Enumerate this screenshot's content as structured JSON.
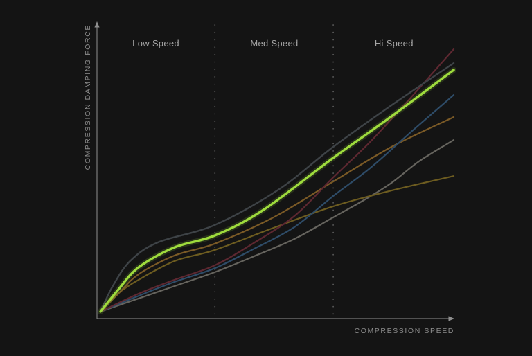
{
  "page": {
    "background": "#141414"
  },
  "chart_data": {
    "type": "line",
    "title": "",
    "xlabel": "COMPRESSION SPEED",
    "ylabel": "COMPRESSION DAMPING FORCE",
    "x_range": [
      0,
      1
    ],
    "y_range": [
      0,
      1
    ],
    "grid": false,
    "legend": "none",
    "zones": [
      {
        "label": "Low Speed",
        "center_u": 0.157
      },
      {
        "label": "Med Speed",
        "center_u": 0.492
      },
      {
        "label": "Hi Speed",
        "center_u": 0.831
      }
    ],
    "zone_boundaries_u": [
      0.324,
      0.659
    ],
    "series": [
      {
        "name": "curve-gray-light",
        "color": "#66645e",
        "width": 2.2,
        "highlight": false,
        "points": [
          [
            0,
            0.003
          ],
          [
            0.108,
            0.053
          ],
          [
            0.21,
            0.1
          ],
          [
            0.324,
            0.153
          ],
          [
            0.431,
            0.211
          ],
          [
            0.549,
            0.279
          ],
          [
            0.659,
            0.361
          ],
          [
            0.749,
            0.429
          ],
          [
            0.824,
            0.492
          ],
          [
            0.902,
            0.574
          ],
          [
            1,
            0.655
          ]
        ]
      },
      {
        "name": "curve-olive",
        "color": "#6d5c20",
        "width": 2.2,
        "highlight": false,
        "points": [
          [
            0,
            0.003
          ],
          [
            0.049,
            0.071
          ],
          [
            0.108,
            0.124
          ],
          [
            0.21,
            0.195
          ],
          [
            0.324,
            0.237
          ],
          [
            0.49,
            0.321
          ],
          [
            0.659,
            0.403
          ],
          [
            0.824,
            0.463
          ],
          [
            1,
            0.518
          ]
        ]
      },
      {
        "name": "curve-orange-brown",
        "color": "#7b5a26",
        "width": 2.2,
        "highlight": false,
        "points": [
          [
            0,
            0.003
          ],
          [
            0.053,
            0.074
          ],
          [
            0.108,
            0.145
          ],
          [
            0.21,
            0.216
          ],
          [
            0.324,
            0.261
          ],
          [
            0.49,
            0.361
          ],
          [
            0.659,
            0.497
          ],
          [
            0.824,
            0.629
          ],
          [
            1,
            0.742
          ]
        ]
      },
      {
        "name": "curve-blue",
        "color": "#2e4c68",
        "width": 2.2,
        "highlight": false,
        "points": [
          [
            0,
            0.003
          ],
          [
            0.108,
            0.063
          ],
          [
            0.21,
            0.116
          ],
          [
            0.324,
            0.168
          ],
          [
            0.431,
            0.239
          ],
          [
            0.549,
            0.324
          ],
          [
            0.659,
            0.442
          ],
          [
            0.765,
            0.55
          ],
          [
            0.882,
            0.689
          ],
          [
            1,
            0.826
          ]
        ]
      },
      {
        "name": "curve-maroon",
        "color": "#5e2831",
        "width": 2.2,
        "highlight": false,
        "points": [
          [
            0,
            0.003
          ],
          [
            0.108,
            0.071
          ],
          [
            0.21,
            0.124
          ],
          [
            0.324,
            0.179
          ],
          [
            0.431,
            0.261
          ],
          [
            0.549,
            0.366
          ],
          [
            0.659,
            0.513
          ],
          [
            0.765,
            0.65
          ],
          [
            0.882,
            0.821
          ],
          [
            1,
            1
          ]
        ]
      },
      {
        "name": "curve-gray-dark",
        "color": "#3e4347",
        "width": 2.4,
        "highlight": false,
        "points": [
          [
            0,
            0.003
          ],
          [
            0.035,
            0.1
          ],
          [
            0.084,
            0.195
          ],
          [
            0.163,
            0.266
          ],
          [
            0.324,
            0.332
          ],
          [
            0.504,
            0.466
          ],
          [
            0.659,
            0.629
          ],
          [
            0.824,
            0.787
          ],
          [
            1,
            0.947
          ]
        ]
      },
      {
        "name": "curve-highlight-lime",
        "color": "#9edb3d",
        "width": 3.4,
        "highlight": true,
        "points": [
          [
            0,
            0.003
          ],
          [
            0.049,
            0.084
          ],
          [
            0.108,
            0.171
          ],
          [
            0.21,
            0.247
          ],
          [
            0.324,
            0.292
          ],
          [
            0.461,
            0.389
          ],
          [
            0.659,
            0.587
          ],
          [
            0.824,
            0.745
          ],
          [
            1,
            0.921
          ]
        ]
      }
    ]
  }
}
